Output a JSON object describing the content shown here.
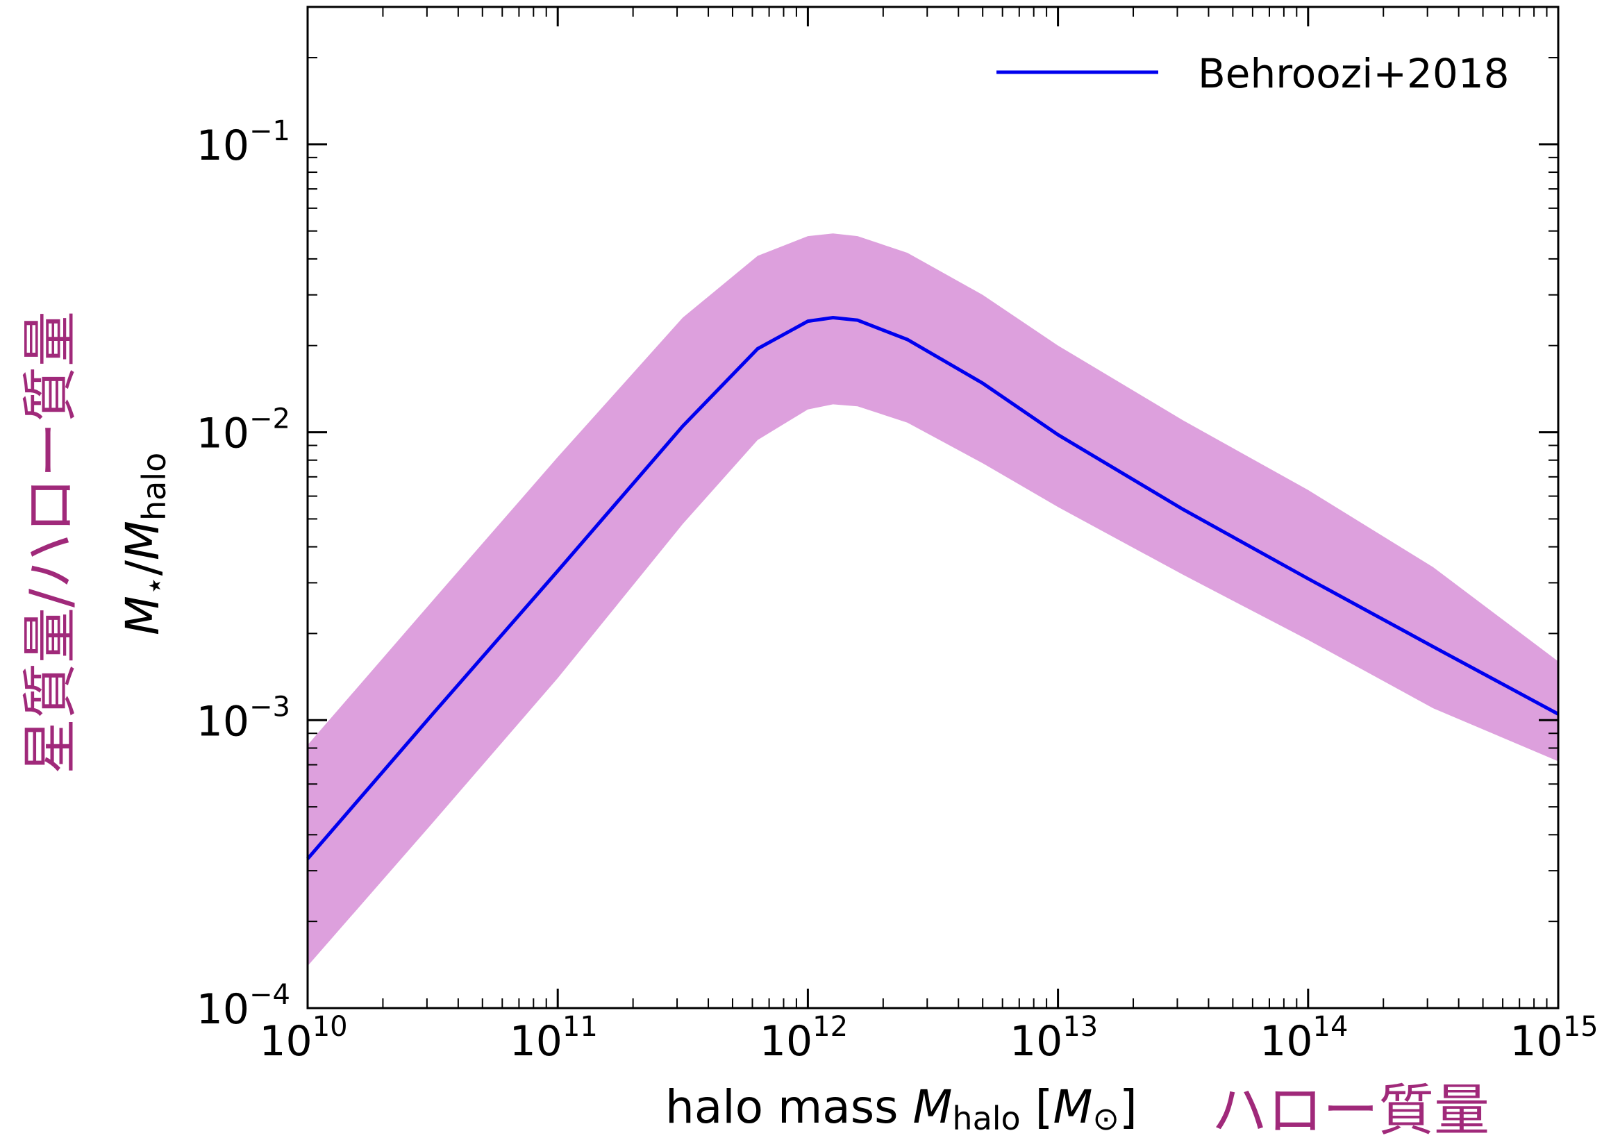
{
  "chart_data": {
    "type": "line",
    "x_scale": "log",
    "y_scale": "log",
    "xlim": [
      10000000000.0,
      1000000000000000.0
    ],
    "ylim": [
      0.0001,
      0.3
    ],
    "x_ticks": [
      10000000000.0,
      100000000000.0,
      1000000000000.0,
      10000000000000.0,
      100000000000000.0,
      1000000000000000.0
    ],
    "x_tick_labels": [
      {
        "base": "10",
        "exp": "10"
      },
      {
        "base": "10",
        "exp": "11"
      },
      {
        "base": "10",
        "exp": "12"
      },
      {
        "base": "10",
        "exp": "13"
      },
      {
        "base": "10",
        "exp": "14"
      },
      {
        "base": "10",
        "exp": "15"
      }
    ],
    "y_ticks": [
      0.0001,
      0.001,
      0.01,
      0.1
    ],
    "y_tick_labels": [
      {
        "base": "10",
        "exp": "−4"
      },
      {
        "base": "10",
        "exp": "−3"
      },
      {
        "base": "10",
        "exp": "−2"
      },
      {
        "base": "10",
        "exp": "−1"
      }
    ],
    "xlabel": {
      "prefix": "halo mass ",
      "sym": "M",
      "sub": "halo",
      "open": " [",
      "unit": "M",
      "unit_sub": "⊙",
      "close": "]"
    },
    "xlabel_jp": "ハロー質量",
    "ylabel": {
      "sym1": "M",
      "sub1": "⋆",
      "slash": "/",
      "sym2": "M",
      "sub2": "halo"
    },
    "ylabel_jp": "星質量/ハロー質量",
    "grid": false,
    "legend_position": "top-right",
    "series": [
      {
        "name": "Behroozi+2018",
        "color": "#0000ee",
        "x": [
          10000000000.0,
          31600000000.0,
          100000000000.0,
          316000000000.0,
          630000000000.0,
          1000000000000.0,
          1260000000000.0,
          1580000000000.0,
          2500000000000.0,
          5000000000000.0,
          10000000000000.0,
          31600000000000.0,
          100000000000000.0,
          316000000000000.0,
          1000000000000000.0
        ],
        "y": [
          0.00033,
          0.00105,
          0.0033,
          0.0105,
          0.0195,
          0.0243,
          0.025,
          0.0245,
          0.021,
          0.0148,
          0.0098,
          0.0054,
          0.0031,
          0.0018,
          0.00105
        ]
      }
    ],
    "band": {
      "color": "#dda0dd",
      "x": [
        10000000000.0,
        31600000000.0,
        100000000000.0,
        316000000000.0,
        630000000000.0,
        1000000000000.0,
        1260000000000.0,
        1580000000000.0,
        2500000000000.0,
        5000000000000.0,
        10000000000000.0,
        31600000000000.0,
        100000000000000.0,
        316000000000000.0,
        1000000000000000.0
      ],
      "upper": [
        0.00082,
        0.0026,
        0.0082,
        0.025,
        0.041,
        0.048,
        0.049,
        0.048,
        0.042,
        0.03,
        0.02,
        0.011,
        0.0063,
        0.0034,
        0.0016
      ],
      "lower": [
        0.00014,
        0.00044,
        0.0014,
        0.0048,
        0.0094,
        0.012,
        0.0125,
        0.0123,
        0.0108,
        0.0078,
        0.0055,
        0.0032,
        0.0019,
        0.0011,
        0.00072
      ]
    }
  }
}
